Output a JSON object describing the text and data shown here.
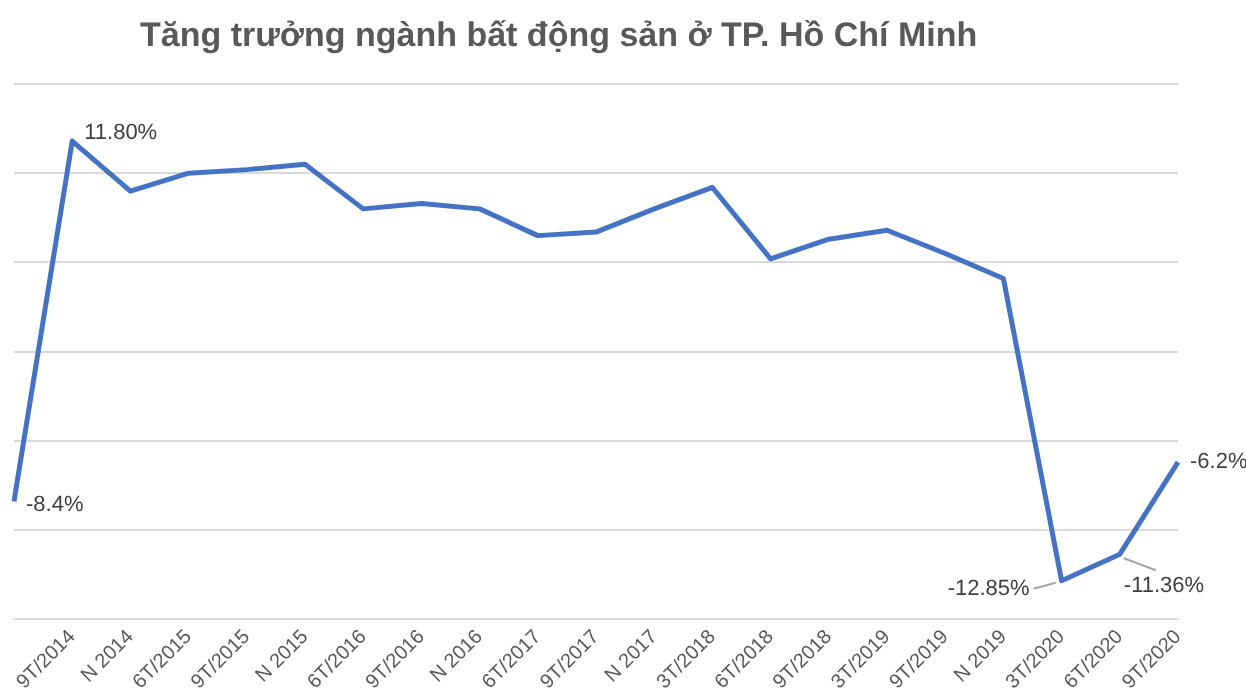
{
  "chart_data": {
    "type": "line",
    "title": "Tăng trưởng ngành bất động sản ở TP. Hồ Chí Minh",
    "categories": [
      null,
      "9T/2014",
      "N 2014",
      "6T/2015",
      "9T/2015",
      "N 2015",
      "6T/2016",
      "9T/2016",
      "N 2016",
      "6T/2017",
      "9T/2017",
      "N 2017",
      "3T/2018",
      "6T/2018",
      "9T/2018",
      "3T/2019",
      "9T/2019",
      "N 2019",
      "3T/2020",
      "6T/2020",
      "9T/2020"
    ],
    "values": [
      -8.4,
      11.8,
      9.0,
      10.0,
      10.2,
      10.5,
      8.0,
      8.3,
      8.0,
      6.5,
      6.7,
      8.0,
      9.2,
      5.2,
      6.3,
      6.8,
      5.5,
      4.1,
      -12.85,
      -11.36,
      -6.2
    ],
    "value_labels": [
      "-8.4%",
      "11.80%",
      null,
      null,
      null,
      null,
      null,
      null,
      null,
      null,
      null,
      null,
      null,
      null,
      null,
      null,
      null,
      null,
      "-12.85%",
      "-11.36%",
      "-6.2%"
    ],
    "color": "#4472c4",
    "line_style": "solid",
    "marker": "none",
    "ylim": [
      -15,
      15
    ],
    "yticks": [
      {
        "value": -15,
        "label": null
      },
      {
        "value": -10,
        "label": null
      },
      {
        "value": -5,
        "label": null
      },
      {
        "value": 0,
        "label": null
      },
      {
        "value": 5,
        "label": null
      },
      {
        "value": 10,
        "label": null
      },
      {
        "value": 15,
        "label": null
      }
    ],
    "grid": "y"
  }
}
